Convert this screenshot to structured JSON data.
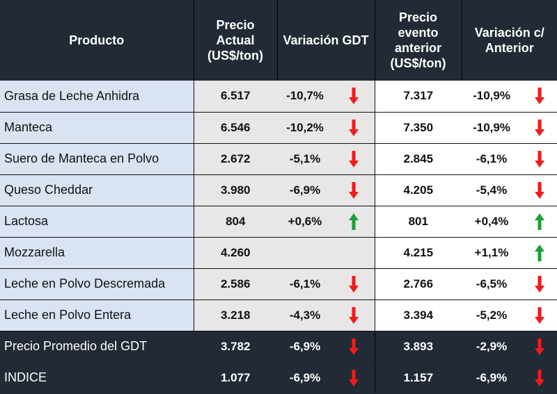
{
  "colors": {
    "header_bg": "#222a35",
    "product_bg": "#dae3f2",
    "price_bg": "#e8e6e6",
    "down_arrow": "#ee1c1c",
    "up_arrow": "#1e9e3a"
  },
  "headers": {
    "product": "Producto",
    "price": "Precio Actual (US$/ton)",
    "variation": "Variación GDT",
    "previous": "Precio evento anterior (US$/ton)",
    "variation_prev": "Variación c/ Anterior"
  },
  "rows": [
    {
      "product": "Grasa de Leche Anhidra",
      "price": "6.517",
      "variation": "-10,7%",
      "arrow1": "down-arrow-icon",
      "previous": "7.317",
      "variation_prev": "-10,9%",
      "arrow2": "down-arrow-icon"
    },
    {
      "product": "Manteca",
      "price": "6.546",
      "variation": "-10,2%",
      "arrow1": "down-arrow-icon",
      "previous": "7.350",
      "variation_prev": "-10,9%",
      "arrow2": "down-arrow-icon"
    },
    {
      "product": "Suero de Manteca en Polvo",
      "price": "2.672",
      "variation": "-5,1%",
      "arrow1": "down-arrow-icon",
      "previous": "2.845",
      "variation_prev": "-6,1%",
      "arrow2": "down-arrow-icon"
    },
    {
      "product": "Queso Cheddar",
      "price": "3.980",
      "variation": "-6,9%",
      "arrow1": "down-arrow-icon",
      "previous": "4.205",
      "variation_prev": "-5,4%",
      "arrow2": "down-arrow-icon"
    },
    {
      "product": "Lactosa",
      "price": "804",
      "variation": "+0,6%",
      "arrow1": "up-arrow-icon",
      "previous": "801",
      "variation_prev": "+0,4%",
      "arrow2": "up-arrow-icon"
    },
    {
      "product": "Mozzarella",
      "price": "4.260",
      "variation": "",
      "arrow1": "",
      "previous": "4.215",
      "variation_prev": "+1,1%",
      "arrow2": "up-arrow-icon"
    },
    {
      "product": "Leche en Polvo Descremada",
      "price": "2.586",
      "variation": "-6,1%",
      "arrow1": "down-arrow-icon",
      "previous": "2.766",
      "variation_prev": "-6,5%",
      "arrow2": "down-arrow-icon"
    },
    {
      "product": "Leche en Polvo Entera",
      "price": "3.218",
      "variation": "-4,3%",
      "arrow1": "down-arrow-icon",
      "previous": "3.394",
      "variation_prev": "-5,2%",
      "arrow2": "down-arrow-icon"
    }
  ],
  "summary": [
    {
      "product": "Precio Promedio del GDT",
      "price": "3.782",
      "variation": "-6,9%",
      "arrow1": "down-arrow-icon",
      "previous": "3.893",
      "variation_prev": "-2,9%",
      "arrow2": "down-arrow-icon"
    },
    {
      "product": "INDICE",
      "price": "1.077",
      "variation": "-6,9%",
      "arrow1": "down-arrow-icon",
      "previous": "1.157",
      "variation_prev": "-6,9%",
      "arrow2": "down-arrow-icon"
    }
  ]
}
